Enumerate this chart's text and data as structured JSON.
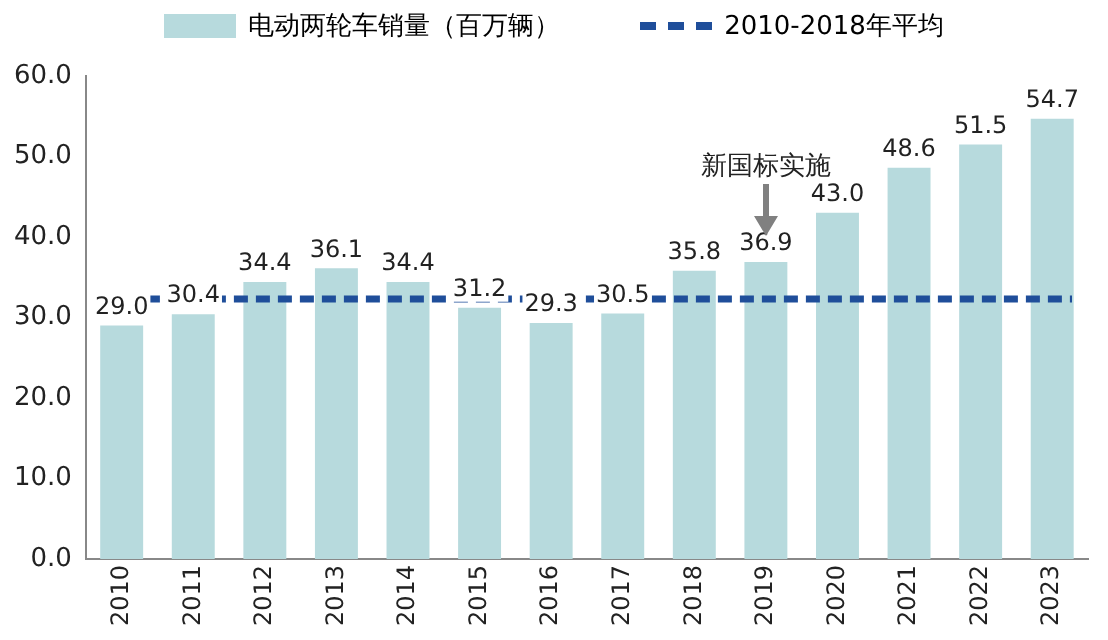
{
  "chart_data": {
    "type": "bar",
    "categories": [
      "2010",
      "2011",
      "2012",
      "2013",
      "2014",
      "2015",
      "2016",
      "2017",
      "2018",
      "2019",
      "2020",
      "2021",
      "2022",
      "2023"
    ],
    "series": [
      {
        "name": "电动两轮车销量（百万辆）",
        "color": "#b7dadd",
        "values": [
          29.0,
          30.4,
          34.4,
          36.1,
          34.4,
          31.2,
          29.3,
          30.5,
          35.8,
          36.9,
          43.0,
          48.6,
          51.5,
          54.7
        ],
        "value_labels": [
          "29.0",
          "30.4",
          "34.4",
          "36.1",
          "34.4",
          "31.2",
          "29.3",
          "30.5",
          "35.8",
          "36.9",
          "43.0",
          "48.6",
          "51.5",
          "54.7"
        ]
      }
    ],
    "ylim": [
      0,
      60
    ],
    "yticks": [
      {
        "value": 0,
        "label": "0.0"
      },
      {
        "value": 10,
        "label": "10.0"
      },
      {
        "value": 20,
        "label": "20.0"
      },
      {
        "value": 30,
        "label": "30.0"
      },
      {
        "value": 40,
        "label": "40.0"
      },
      {
        "value": 50,
        "label": "50.0"
      },
      {
        "value": 60,
        "label": "60.0"
      }
    ],
    "ref_lines": [
      {
        "axis": "y",
        "value": 32.3,
        "label": "2010-2018年平均",
        "color": "#1f4e9a",
        "line_style": "dashed"
      }
    ],
    "annotations": [
      "新国标实施"
    ],
    "legend": "top"
  }
}
